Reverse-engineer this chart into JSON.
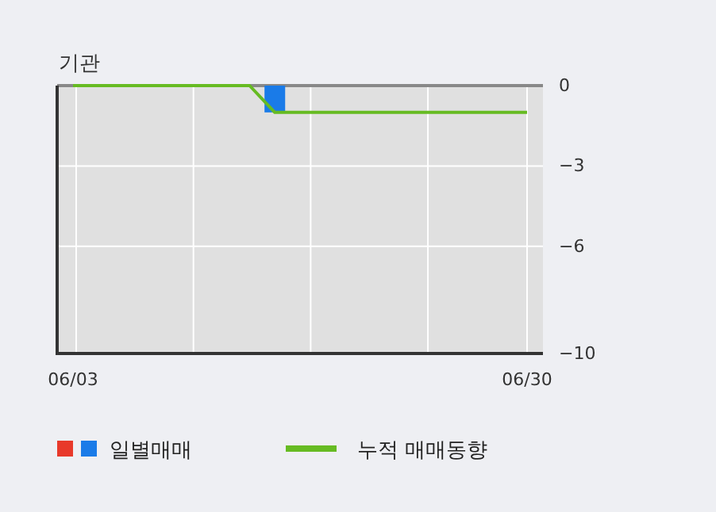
{
  "chart_data": {
    "type": "bar",
    "title": "기관",
    "categories": [
      "06/03",
      null,
      null,
      null,
      null,
      null,
      null,
      null,
      null,
      null,
      null,
      null,
      null,
      null,
      null,
      null,
      null,
      null,
      "06/30"
    ],
    "series": [
      {
        "name": "일별매매",
        "color": "#1a7be8",
        "values": [
          0,
          0,
          0,
          0,
          0,
          0,
          0,
          0,
          -1,
          0,
          0,
          0,
          0,
          0,
          0,
          0,
          0,
          0,
          0
        ]
      },
      {
        "name": "누적 매매동향",
        "type": "line",
        "color": "#66bb22",
        "values": [
          0,
          0,
          0,
          0,
          0,
          0,
          0,
          0,
          -1,
          -1,
          -1,
          -1,
          -1,
          -1,
          -1,
          -1,
          -1,
          -1,
          -1
        ]
      }
    ],
    "ylim": [
      -10,
      0
    ],
    "yticks": [
      0,
      -3,
      -6,
      -10
    ],
    "grid": true,
    "legend": "bottom",
    "line_style": "solid"
  }
}
